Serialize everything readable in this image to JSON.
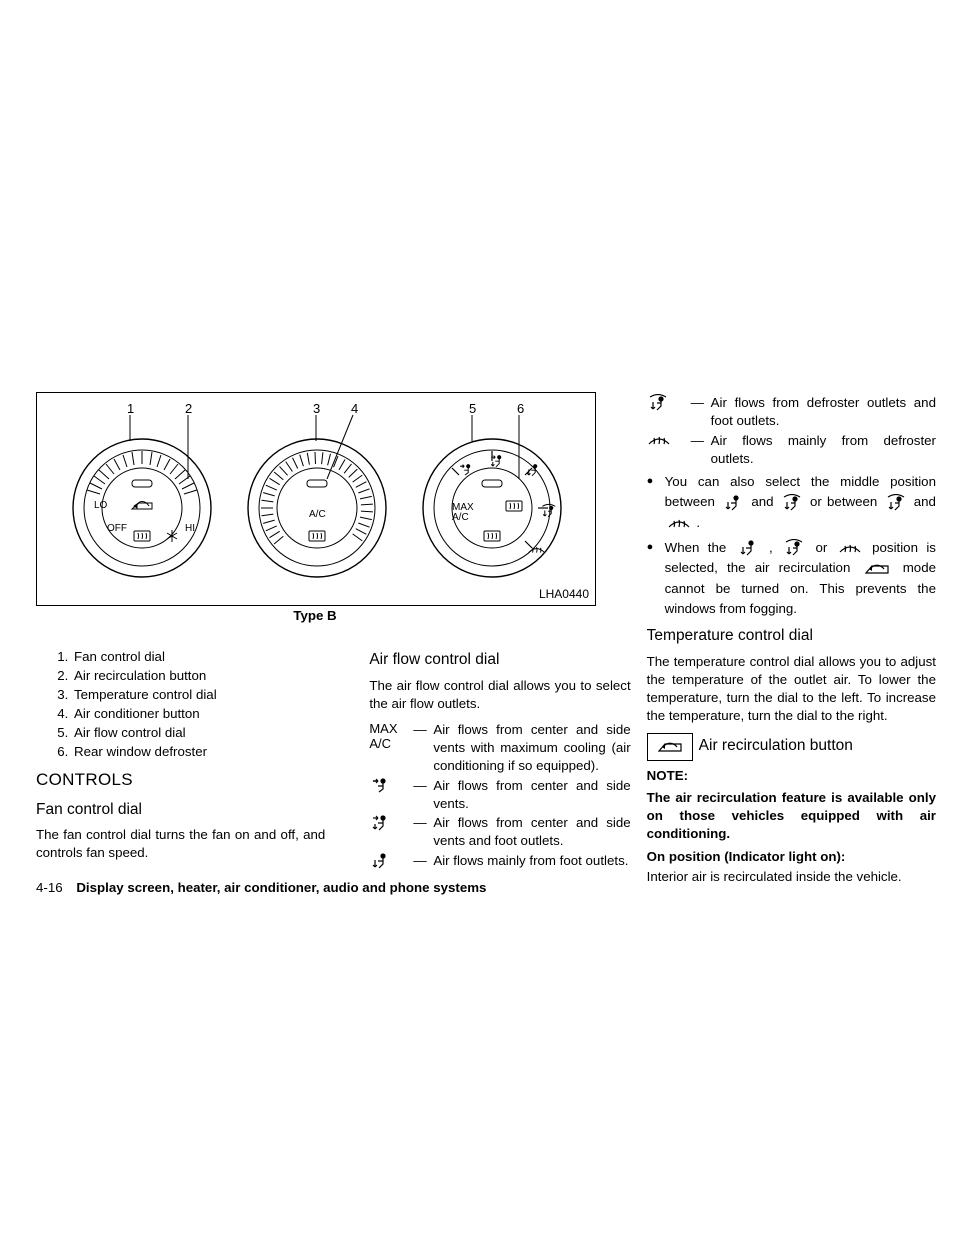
{
  "figure": {
    "code": "LHA0440",
    "type_label": "Type B",
    "callout_numbers": [
      "1",
      "2",
      "3",
      "4",
      "5",
      "6"
    ],
    "dial_labels": {
      "lo": "LO",
      "off": "OFF",
      "hi": "HI",
      "ac": "A/C",
      "max_ac_1": "MAX",
      "max_ac_2": "A/C"
    },
    "colors": {
      "stroke": "#000000",
      "fill": "#ffffff"
    }
  },
  "legend": {
    "items": [
      "Fan control dial",
      "Air recirculation button",
      "Temperature control dial",
      "Air conditioner button",
      "Air flow control dial",
      "Rear window defroster"
    ]
  },
  "col1": {
    "controls_heading": "CONTROLS",
    "fan_heading": "Fan control dial",
    "fan_para": "The fan control dial turns the fan on and off, and controls fan speed."
  },
  "col2": {
    "airflow_heading": "Air flow control dial",
    "airflow_para": "The air flow control dial allows you to select the air flow outlets.",
    "rows": [
      {
        "sym_text": "MAX A/C",
        "desc": "Air flows from center and side vents with maximum cooling (air conditioning if so equipped)."
      },
      {
        "sym_svg": "face",
        "desc": "Air flows from center and side vents."
      },
      {
        "sym_svg": "face_foot",
        "desc": "Air flows from center and side vents and foot outlets."
      },
      {
        "sym_svg": "foot",
        "desc": "Air flows mainly from foot outlets."
      }
    ]
  },
  "col3": {
    "top_rows": [
      {
        "sym_svg": "defrost_foot",
        "desc": "Air flows from defroster outlets and foot outlets."
      },
      {
        "sym_svg": "defrost",
        "desc": "Air flows mainly from defroster outlets."
      }
    ],
    "bullet1_a": "You can also select the middle position between",
    "bullet1_b": "and",
    "bullet1_c": "or between",
    "bullet1_d": "and",
    "bullet1_e": ".",
    "bullet2_a": "When the",
    "bullet2_b": ",",
    "bullet2_c": "or",
    "bullet2_d": "position is selected, the air recirculation",
    "bullet2_e": "mode cannot be turned on. This prevents the windows from fogging.",
    "temp_heading": "Temperature control dial",
    "temp_para": "The temperature control dial allows you to adjust the temperature of the outlet air. To lower the temperature, turn the dial to the left. To increase the temperature, turn the dial to the right.",
    "recirc_heading": "Air recirculation button",
    "note_label": "NOTE:",
    "note_bold": "The air recirculation feature is available only on those vehicles equipped with air conditioning.",
    "on_position": "On position (Indicator light on):",
    "on_text": "Interior air is recirculated inside the vehicle."
  },
  "footer": {
    "page": "4-16",
    "title": "Display screen, heater, air conditioner, audio and phone systems"
  }
}
